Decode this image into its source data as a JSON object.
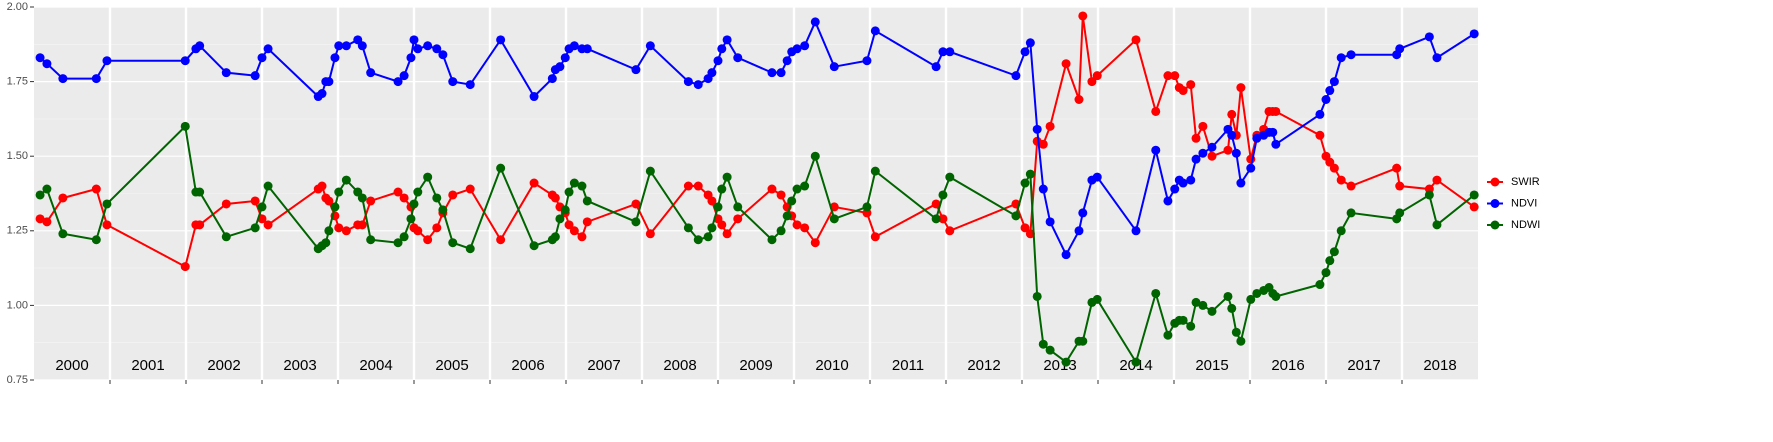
{
  "chart_data": {
    "type": "line",
    "x": [
      2000.08,
      2000.17,
      2000.38,
      2000.82,
      2000.96,
      2001.99,
      2002.13,
      2002.18,
      2002.53,
      2002.91,
      2003.0,
      2003.08,
      2003.74,
      2003.79,
      2003.84,
      2003.88,
      2003.96,
      2004.01,
      2004.11,
      2004.26,
      2004.32,
      2004.43,
      2004.79,
      2004.87,
      2004.96,
      2005.0,
      2005.05,
      2005.18,
      2005.3,
      2005.38,
      2005.51,
      2005.74,
      2006.14,
      2006.58,
      2006.82,
      2006.86,
      2006.92,
      2006.99,
      2007.04,
      2007.11,
      2007.21,
      2007.28,
      2007.92,
      2008.11,
      2008.61,
      2008.74,
      2008.87,
      2008.92,
      2009.0,
      2009.05,
      2009.12,
      2009.26,
      2009.71,
      2009.83,
      2009.91,
      2009.97,
      2010.04,
      2010.14,
      2010.28,
      2010.53,
      2010.96,
      2011.07,
      2011.87,
      2011.96,
      2012.05,
      2012.92,
      2013.04,
      2013.11,
      2013.2,
      2013.28,
      2013.37,
      2013.58,
      2013.75,
      2013.8,
      2013.92,
      2013.99,
      2014.5,
      2014.76,
      2014.92,
      2015.01,
      2015.07,
      2015.12,
      2015.22,
      2015.29,
      2015.38,
      2015.5,
      2015.71,
      2015.76,
      2015.82,
      2015.88,
      2016.01,
      2016.09,
      2016.18,
      2016.25,
      2016.3,
      2016.34,
      2016.92,
      2017.0,
      2017.05,
      2017.11,
      2017.2,
      2017.33,
      2017.93,
      2017.97,
      2018.36,
      2018.46,
      2018.95
    ],
    "series": [
      {
        "name": "SWIR",
        "color": "#ff0000",
        "values": [
          1.29,
          1.28,
          1.36,
          1.39,
          1.27,
          1.13,
          1.27,
          1.27,
          1.34,
          1.35,
          1.29,
          1.27,
          1.39,
          1.4,
          1.36,
          1.35,
          1.3,
          1.26,
          1.25,
          1.27,
          1.27,
          1.35,
          1.38,
          1.36,
          1.33,
          1.26,
          1.25,
          1.22,
          1.26,
          1.31,
          1.37,
          1.39,
          1.22,
          1.41,
          1.37,
          1.36,
          1.33,
          1.31,
          1.27,
          1.25,
          1.23,
          1.28,
          1.34,
          1.24,
          1.4,
          1.4,
          1.37,
          1.35,
          1.29,
          1.27,
          1.24,
          1.29,
          1.39,
          1.37,
          1.33,
          1.3,
          1.27,
          1.26,
          1.21,
          1.33,
          1.31,
          1.23,
          1.34,
          1.29,
          1.25,
          1.34,
          1.26,
          1.24,
          1.55,
          1.54,
          1.6,
          1.81,
          1.69,
          1.97,
          1.75,
          1.77,
          1.89,
          1.65,
          1.77,
          1.77,
          1.73,
          1.72,
          1.74,
          1.56,
          1.6,
          1.5,
          1.52,
          1.64,
          1.57,
          1.73,
          1.49,
          1.57,
          1.59,
          1.65,
          1.65,
          1.65,
          1.57,
          1.5,
          1.48,
          1.46,
          1.42,
          1.4,
          1.46,
          1.4,
          1.39,
          1.42,
          1.33
        ]
      },
      {
        "name": "NDVI",
        "color": "#0000ff",
        "values": [
          1.83,
          1.81,
          1.76,
          1.76,
          1.82,
          1.82,
          1.86,
          1.87,
          1.78,
          1.77,
          1.83,
          1.86,
          1.7,
          1.71,
          1.75,
          1.75,
          1.83,
          1.87,
          1.87,
          1.89,
          1.87,
          1.78,
          1.75,
          1.77,
          1.83,
          1.89,
          1.86,
          1.87,
          1.86,
          1.84,
          1.75,
          1.74,
          1.89,
          1.7,
          1.76,
          1.79,
          1.8,
          1.83,
          1.86,
          1.87,
          1.86,
          1.86,
          1.79,
          1.87,
          1.75,
          1.74,
          1.76,
          1.78,
          1.82,
          1.86,
          1.89,
          1.83,
          1.78,
          1.78,
          1.82,
          1.85,
          1.86,
          1.87,
          1.95,
          1.8,
          1.82,
          1.92,
          1.8,
          1.85,
          1.85,
          1.77,
          1.85,
          1.88,
          1.59,
          1.39,
          1.28,
          1.17,
          1.25,
          1.31,
          1.42,
          1.43,
          1.25,
          1.52,
          1.35,
          1.39,
          1.42,
          1.41,
          1.42,
          1.49,
          1.51,
          1.53,
          1.59,
          1.57,
          1.51,
          1.41,
          1.46,
          1.56,
          1.57,
          1.58,
          1.58,
          1.54,
          1.64,
          1.69,
          1.72,
          1.75,
          1.83,
          1.84,
          1.84,
          1.86,
          1.9,
          1.83,
          1.91
        ]
      },
      {
        "name": "NDWI",
        "color": "#006400",
        "values": [
          1.37,
          1.39,
          1.24,
          1.22,
          1.34,
          1.6,
          1.38,
          1.38,
          1.23,
          1.26,
          1.33,
          1.4,
          1.19,
          1.2,
          1.21,
          1.25,
          1.33,
          1.38,
          1.42,
          1.38,
          1.36,
          1.22,
          1.21,
          1.23,
          1.29,
          1.34,
          1.38,
          1.43,
          1.36,
          1.32,
          1.21,
          1.19,
          1.46,
          1.2,
          1.22,
          1.23,
          1.29,
          1.32,
          1.38,
          1.41,
          1.4,
          1.35,
          1.28,
          1.45,
          1.26,
          1.22,
          1.23,
          1.26,
          1.33,
          1.39,
          1.43,
          1.33,
          1.22,
          1.25,
          1.3,
          1.35,
          1.39,
          1.4,
          1.5,
          1.29,
          1.33,
          1.45,
          1.29,
          1.37,
          1.43,
          1.3,
          1.41,
          1.44,
          1.03,
          0.87,
          0.85,
          0.81,
          0.88,
          0.88,
          1.01,
          1.02,
          0.81,
          1.04,
          0.9,
          0.94,
          0.95,
          0.95,
          0.93,
          1.01,
          1.0,
          0.98,
          1.03,
          0.99,
          0.91,
          0.88,
          1.02,
          1.04,
          1.05,
          1.06,
          1.04,
          1.03,
          1.07,
          1.11,
          1.15,
          1.18,
          1.25,
          1.31,
          1.29,
          1.31,
          1.37,
          1.27,
          1.37
        ]
      }
    ],
    "xlim": [
      2000,
      2019
    ],
    "xticks": [
      2001,
      2002,
      2003,
      2004,
      2005,
      2006,
      2007,
      2008,
      2009,
      2010,
      2011,
      2012,
      2013,
      2014,
      2015,
      2016,
      2017,
      2018
    ],
    "year_labels": [
      "2000",
      "2001",
      "2002",
      "2003",
      "2004",
      "2005",
      "2006",
      "2007",
      "2008",
      "2009",
      "2010",
      "2011",
      "2012",
      "2013",
      "2014",
      "2015",
      "2016",
      "2017",
      "2018"
    ],
    "ylim": [
      0.75,
      2.0
    ],
    "yticks": [
      {
        "value": 0.75,
        "label": "0.75"
      },
      {
        "value": 1.0,
        "label": "1.00"
      },
      {
        "value": 1.25,
        "label": "1.25"
      },
      {
        "value": 1.5,
        "label": "1.50"
      },
      {
        "value": 1.75,
        "label": "1.75"
      },
      {
        "value": 2.0,
        "label": "2.00"
      }
    ],
    "grid": true,
    "legend": "right"
  }
}
